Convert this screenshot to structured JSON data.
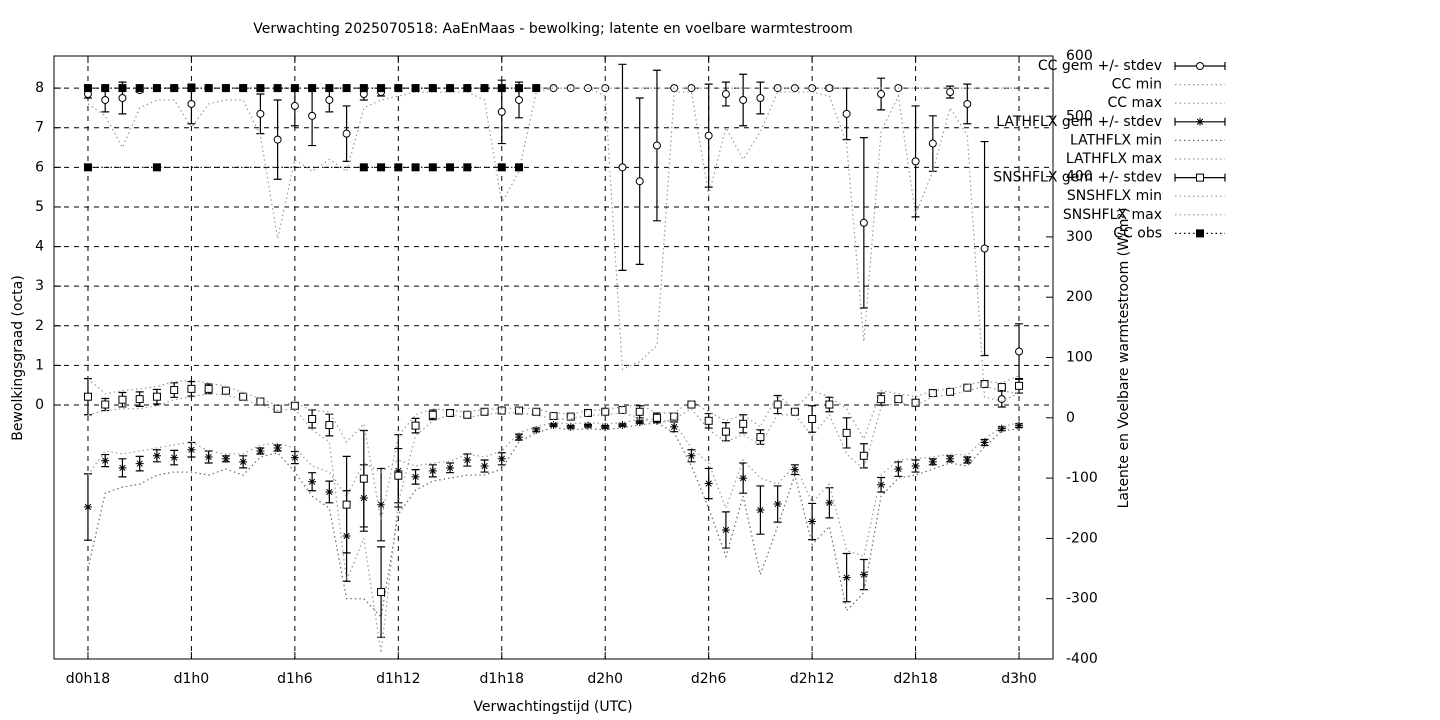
{
  "chart_data": {
    "type": "errorbar-line",
    "title": "Verwachting 2025070518: AaEnMaas - bewolking; latente en voelbare warmtestroom",
    "x_label": "Verwachtingstijd (UTC)",
    "y_label": "Bewolkingsgraad (octa)",
    "y2_label": "Latente en Voelbare warmtestroom (W/m²)",
    "xlim": [
      16.03,
      73.97
    ],
    "xticks": [
      {
        "value": 18,
        "label": "d0h18"
      },
      {
        "value": 24,
        "label": "d1h0"
      },
      {
        "value": 30,
        "label": "d1h6"
      },
      {
        "value": 36,
        "label": "d1h12"
      },
      {
        "value": 42,
        "label": "d1h18"
      },
      {
        "value": 48,
        "label": "d2h0"
      },
      {
        "value": 54,
        "label": "d2h6"
      },
      {
        "value": 60,
        "label": "d2h12"
      },
      {
        "value": 66,
        "label": "d2h18"
      },
      {
        "value": 72,
        "label": "d3h0"
      }
    ],
    "ylim": [
      -6.41,
      8.81
    ],
    "yticks": [
      0,
      1,
      2,
      3,
      4,
      5,
      6,
      7,
      8
    ],
    "y2lim": [
      -400,
      600
    ],
    "y2ticks": [
      -400,
      -300,
      -200,
      -100,
      0,
      100,
      200,
      300,
      400,
      500,
      600
    ],
    "grid": true,
    "legend": "outside-right",
    "x": [
      18,
      19,
      20,
      21,
      22,
      23,
      24,
      25,
      26,
      27,
      28,
      29,
      30,
      31,
      32,
      33,
      34,
      35,
      36,
      37,
      38,
      39,
      40,
      41,
      42,
      43,
      44,
      45,
      46,
      47,
      48,
      49,
      50,
      51,
      52,
      53,
      54,
      55,
      56,
      57,
      58,
      59,
      60,
      61,
      62,
      63,
      64,
      65,
      66,
      67,
      68,
      69,
      70,
      71,
      72
    ],
    "series": [
      {
        "name": "CC gem +/- stdev",
        "style": "errorbars",
        "marker": "circle",
        "color": "#000000",
        "values": [
          7.85,
          7.7,
          7.75,
          7.95,
          8,
          8,
          7.6,
          8,
          8,
          8,
          7.35,
          6.7,
          7.55,
          7.3,
          7.7,
          6.85,
          7.85,
          7.9,
          8,
          8,
          8,
          8,
          8,
          8,
          7.4,
          7.7,
          8,
          8,
          8,
          8,
          8,
          6.0,
          5.65,
          6.55,
          8,
          8,
          6.8,
          7.85,
          7.7,
          7.75,
          8,
          8,
          8,
          8,
          7.35,
          4.6,
          7.85,
          8,
          6.15,
          6.6,
          7.9,
          7.6,
          3.95,
          0.15,
          1.35
        ],
        "errors": [
          0.1,
          0.3,
          0.4,
          0.05,
          0,
          0,
          0.5,
          0,
          0,
          0,
          0.5,
          1.0,
          0.5,
          0.75,
          0.3,
          0.7,
          0.15,
          0.1,
          0,
          0,
          0,
          0,
          0,
          0,
          0.8,
          0.45,
          0,
          0,
          0,
          0,
          0,
          2.6,
          2.1,
          1.9,
          0,
          0,
          1.3,
          0.3,
          0.65,
          0.4,
          0,
          0,
          0,
          0.05,
          0.65,
          2.15,
          0.4,
          0,
          1.4,
          0.7,
          0.15,
          0.5,
          2.7,
          0.2,
          0.7
        ]
      },
      {
        "name": "CC min",
        "style": "dotted",
        "color": "#999999",
        "values": [
          7.6,
          7.3,
          6.5,
          7.5,
          7.7,
          7.7,
          7.0,
          7.6,
          7.7,
          7.7,
          6.8,
          4.2,
          6.2,
          5.9,
          6.2,
          5.9,
          7.5,
          7.7,
          7.8,
          7.9,
          7.9,
          7.9,
          7.9,
          7.7,
          5.1,
          5.9,
          7.9,
          8,
          8,
          8,
          7.8,
          0.9,
          1.1,
          1.5,
          7.9,
          7.9,
          5.3,
          7.0,
          6.2,
          6.9,
          7.9,
          7.9,
          7.9,
          7.8,
          6.6,
          1.6,
          6.9,
          7.8,
          4.8,
          5.9,
          7.5,
          6.8,
          0.2,
          0.1,
          0.3
        ]
      },
      {
        "name": "CC max",
        "style": "dotted",
        "color": "#999999",
        "values": [
          8,
          8,
          8,
          8,
          8,
          8,
          8,
          8,
          8,
          8,
          8,
          8,
          8,
          8,
          8,
          8,
          8,
          8,
          8,
          8,
          8,
          8,
          8,
          8,
          8,
          8,
          8,
          8,
          8,
          8,
          8,
          8,
          8,
          8,
          8,
          8,
          8,
          8,
          8,
          8,
          8,
          8,
          8,
          8,
          8,
          8,
          8,
          8,
          8,
          8,
          8,
          8,
          8,
          8,
          8
        ]
      },
      {
        "name": "LATHFLX gem +/- stdev",
        "style": "errorbars",
        "marker": "star",
        "axis": "y2",
        "color": "#000000",
        "values": [
          -148,
          -71,
          -83,
          -76,
          -63,
          -66,
          -53,
          -65,
          -68,
          -73,
          -55,
          -50,
          -66,
          -106,
          -123,
          -196,
          -133,
          -144,
          -88,
          -98,
          -88,
          -83,
          -70,
          -80,
          -68,
          -32,
          -20,
          -12,
          -15,
          -13,
          -15,
          -12,
          -7,
          -5,
          -15,
          -63,
          -109,
          -186,
          -100,
          -153,
          -143,
          -86,
          -172,
          -141,
          -265,
          -260,
          -111,
          -85,
          -80,
          -73,
          -68,
          -70,
          -41,
          -18,
          -13
        ],
        "errors": [
          55,
          10,
          15,
          12,
          10,
          12,
          12,
          10,
          5,
          10,
          5,
          5,
          10,
          15,
          18,
          75,
          55,
          60,
          60,
          12,
          10,
          8,
          10,
          10,
          10,
          5,
          3,
          2,
          2,
          2,
          2,
          2,
          2,
          2,
          8,
          10,
          25,
          30,
          25,
          40,
          30,
          8,
          30,
          25,
          40,
          25,
          12,
          12,
          10,
          5,
          5,
          5,
          5,
          3,
          3
        ]
      },
      {
        "name": "LATHFLX min",
        "style": "dotted",
        "axis": "y2",
        "color": "#666666",
        "values": [
          -250,
          -125,
          -115,
          -110,
          -95,
          -90,
          -90,
          -95,
          -85,
          -95,
          -65,
          -58,
          -90,
          -130,
          -150,
          -300,
          -300,
          -330,
          -160,
          -120,
          -105,
          -100,
          -95,
          -95,
          -85,
          -40,
          -25,
          -16,
          -20,
          -18,
          -20,
          -16,
          -12,
          -8,
          -25,
          -80,
          -150,
          -230,
          -130,
          -260,
          -180,
          -95,
          -210,
          -180,
          -320,
          -290,
          -130,
          -100,
          -95,
          -85,
          -75,
          -80,
          -48,
          -22,
          -18
        ]
      },
      {
        "name": "LATHFLX max",
        "style": "dotted",
        "axis": "y2",
        "color": "#999999",
        "values": [
          -95,
          -55,
          -60,
          -55,
          -50,
          -45,
          -40,
          -55,
          -60,
          -60,
          -45,
          -42,
          -50,
          -80,
          -90,
          -130,
          -75,
          -90,
          -70,
          -80,
          -75,
          -72,
          -60,
          -65,
          -55,
          -25,
          -15,
          -8,
          -10,
          -8,
          -10,
          -8,
          -3,
          -2,
          -8,
          -50,
          -75,
          -150,
          -70,
          -100,
          -110,
          -78,
          -140,
          -110,
          -220,
          -230,
          -95,
          -70,
          -68,
          -65,
          -60,
          -62,
          -35,
          -15,
          -8
        ]
      },
      {
        "name": "SNSHFLX gem +/- stdev",
        "style": "errorbars",
        "marker": "square",
        "axis": "y2",
        "color": "#000000",
        "values": [
          35,
          22,
          30,
          31,
          35,
          46,
          48,
          48,
          45,
          35,
          27,
          15,
          20,
          -2,
          -12,
          -144,
          -101,
          -289,
          -96,
          -13,
          5,
          8,
          5,
          10,
          12,
          12,
          10,
          3,
          2,
          8,
          10,
          13,
          10,
          0,
          2,
          22,
          -5,
          -23,
          -10,
          -32,
          22,
          10,
          -2,
          22,
          -25,
          -63,
          31,
          31,
          25,
          41,
          43,
          50,
          56,
          51,
          53
        ],
        "errors": [
          30,
          10,
          12,
          12,
          12,
          12,
          12,
          8,
          3,
          3,
          3,
          3,
          3,
          15,
          18,
          80,
          80,
          75,
          45,
          12,
          8,
          3,
          3,
          3,
          3,
          3,
          3,
          3,
          3,
          3,
          3,
          3,
          10,
          8,
          5,
          3,
          12,
          15,
          15,
          12,
          15,
          3,
          22,
          12,
          25,
          20,
          10,
          5,
          5,
          3,
          3,
          3,
          3,
          3,
          12
        ]
      },
      {
        "name": "SNSHFLX min",
        "style": "dotted",
        "axis": "y2",
        "color": "#999999",
        "values": [
          5,
          12,
          15,
          15,
          20,
          30,
          35,
          40,
          38,
          30,
          22,
          12,
          15,
          -20,
          -40,
          -270,
          -200,
          -390,
          -140,
          -30,
          -5,
          5,
          0,
          6,
          8,
          8,
          5,
          -2,
          -2,
          4,
          5,
          8,
          0,
          -10,
          -2,
          15,
          -20,
          -40,
          -28,
          -45,
          5,
          5,
          -30,
          5,
          -60,
          -85,
          18,
          25,
          20,
          35,
          38,
          45,
          52,
          45,
          40
        ]
      },
      {
        "name": "SNSHFLX max",
        "style": "dotted",
        "axis": "y2",
        "color": "#999999",
        "values": [
          65,
          40,
          45,
          48,
          52,
          60,
          62,
          58,
          52,
          42,
          32,
          20,
          25,
          12,
          10,
          -40,
          -10,
          -170,
          -30,
          5,
          15,
          12,
          10,
          14,
          15,
          16,
          15,
          8,
          6,
          12,
          14,
          18,
          22,
          8,
          8,
          28,
          10,
          -5,
          5,
          -15,
          38,
          14,
          45,
          35,
          15,
          -35,
          45,
          40,
          35,
          45,
          48,
          55,
          60,
          58,
          70
        ]
      },
      {
        "name": "CC obs",
        "style": "linespoints",
        "marker": "filled-square",
        "color": "#000000",
        "x": [
          18,
          19,
          20,
          21,
          22,
          23,
          24,
          25,
          26,
          27,
          28,
          29,
          30,
          31,
          32,
          33,
          34,
          35,
          36,
          37,
          38,
          39,
          40,
          41,
          42,
          43,
          44,
          null,
          18,
          22,
          34,
          35,
          36,
          37,
          38,
          39,
          40,
          42,
          43
        ],
        "values": [
          8,
          8,
          8,
          8,
          8,
          8,
          8,
          8,
          8,
          8,
          8,
          8,
          8,
          8,
          8,
          8,
          8,
          8,
          8,
          8,
          8,
          8,
          8,
          8,
          8,
          8,
          8,
          null,
          6,
          6,
          6,
          6,
          6,
          6,
          6,
          6,
          6,
          6,
          6
        ]
      }
    ]
  }
}
